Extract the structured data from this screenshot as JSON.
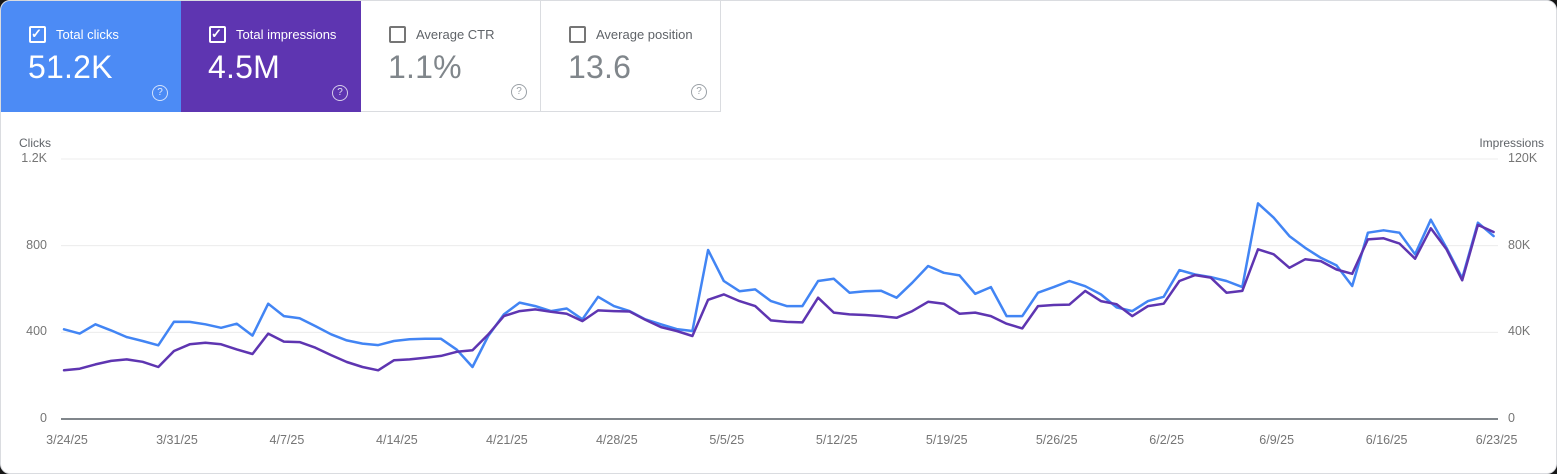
{
  "cards": [
    {
      "label": "Total clicks",
      "value": "51.2K",
      "checked": true,
      "bg": "#4c8bf5"
    },
    {
      "label": "Total impressions",
      "value": "4.5M",
      "checked": true,
      "bg": "#5e35b1"
    },
    {
      "label": "Average CTR",
      "value": "1.1%",
      "checked": false,
      "bg": "#ffffff"
    },
    {
      "label": "Average position",
      "value": "13.6",
      "checked": false,
      "bg": "#ffffff"
    }
  ],
  "chart_data": {
    "type": "line",
    "date_start": "3/24/25",
    "date_end": "6/23/25",
    "x_tick_labels": [
      "3/24/25",
      "3/31/25",
      "4/7/25",
      "4/14/25",
      "4/21/25",
      "4/28/25",
      "5/5/25",
      "5/12/25",
      "5/19/25",
      "5/26/25",
      "6/2/25",
      "6/9/25",
      "6/16/25",
      "6/23/25"
    ],
    "left_axis": {
      "title": "Clicks",
      "ticks": [
        "1.2K",
        "800",
        "400",
        "0"
      ],
      "max": 1200
    },
    "right_axis": {
      "title": "Impressions",
      "ticks": [
        "120K",
        "80K",
        "40K",
        "0"
      ],
      "max": 120000
    },
    "grid": true,
    "legend_position": "none",
    "series": [
      {
        "name": "Total clicks",
        "axis": "left",
        "color": "#4285f4",
        "values": [
          414,
          394,
          437,
          409,
          378,
          360,
          340,
          449,
          448,
          437,
          421,
          440,
          385,
          532,
          475,
          465,
          429,
          391,
          363,
          348,
          341,
          360,
          368,
          370,
          370,
          320,
          240,
          383,
          483,
          537,
          521,
          498,
          510,
          460,
          564,
          521,
          498,
          460,
          437,
          415,
          406,
          780,
          637,
          590,
          598,
          544,
          521,
          521,
          637,
          647,
          583,
          590,
          592,
          560,
          629,
          706,
          675,
          663,
          578,
          609,
          475,
          475,
          583,
          609,
          637,
          613,
          575,
          515,
          498,
          544,
          564,
          687,
          667,
          655,
          637,
          609,
          995,
          929,
          844,
          790,
          744,
          709,
          614,
          860,
          871,
          860,
          760,
          920,
          790,
          650,
          906,
          844
        ]
      },
      {
        "name": "Total impressions",
        "axis": "right",
        "color": "#5e35b1",
        "values": [
          22500,
          23200,
          25200,
          26800,
          27500,
          26400,
          24000,
          31400,
          34500,
          35200,
          34500,
          32100,
          30000,
          39400,
          35700,
          35500,
          32900,
          29500,
          26300,
          24000,
          22500,
          27100,
          27500,
          28300,
          29100,
          31000,
          31700,
          39000,
          47500,
          49800,
          50600,
          49500,
          48600,
          45200,
          50100,
          49800,
          49600,
          45800,
          42400,
          40600,
          38300,
          55000,
          57500,
          54400,
          52100,
          45500,
          44800,
          44600,
          56000,
          49100,
          48300,
          48000,
          47500,
          46700,
          49800,
          54100,
          53200,
          48600,
          49100,
          47500,
          44000,
          41800,
          52100,
          52600,
          52800,
          59100,
          54400,
          53000,
          47500,
          52100,
          53200,
          63700,
          66400,
          65200,
          58300,
          59100,
          78300,
          76000,
          69800,
          73700,
          72900,
          69000,
          67000,
          82900,
          83400,
          81000,
          74000,
          88000,
          78300,
          64000,
          89600,
          86300
        ]
      }
    ]
  }
}
